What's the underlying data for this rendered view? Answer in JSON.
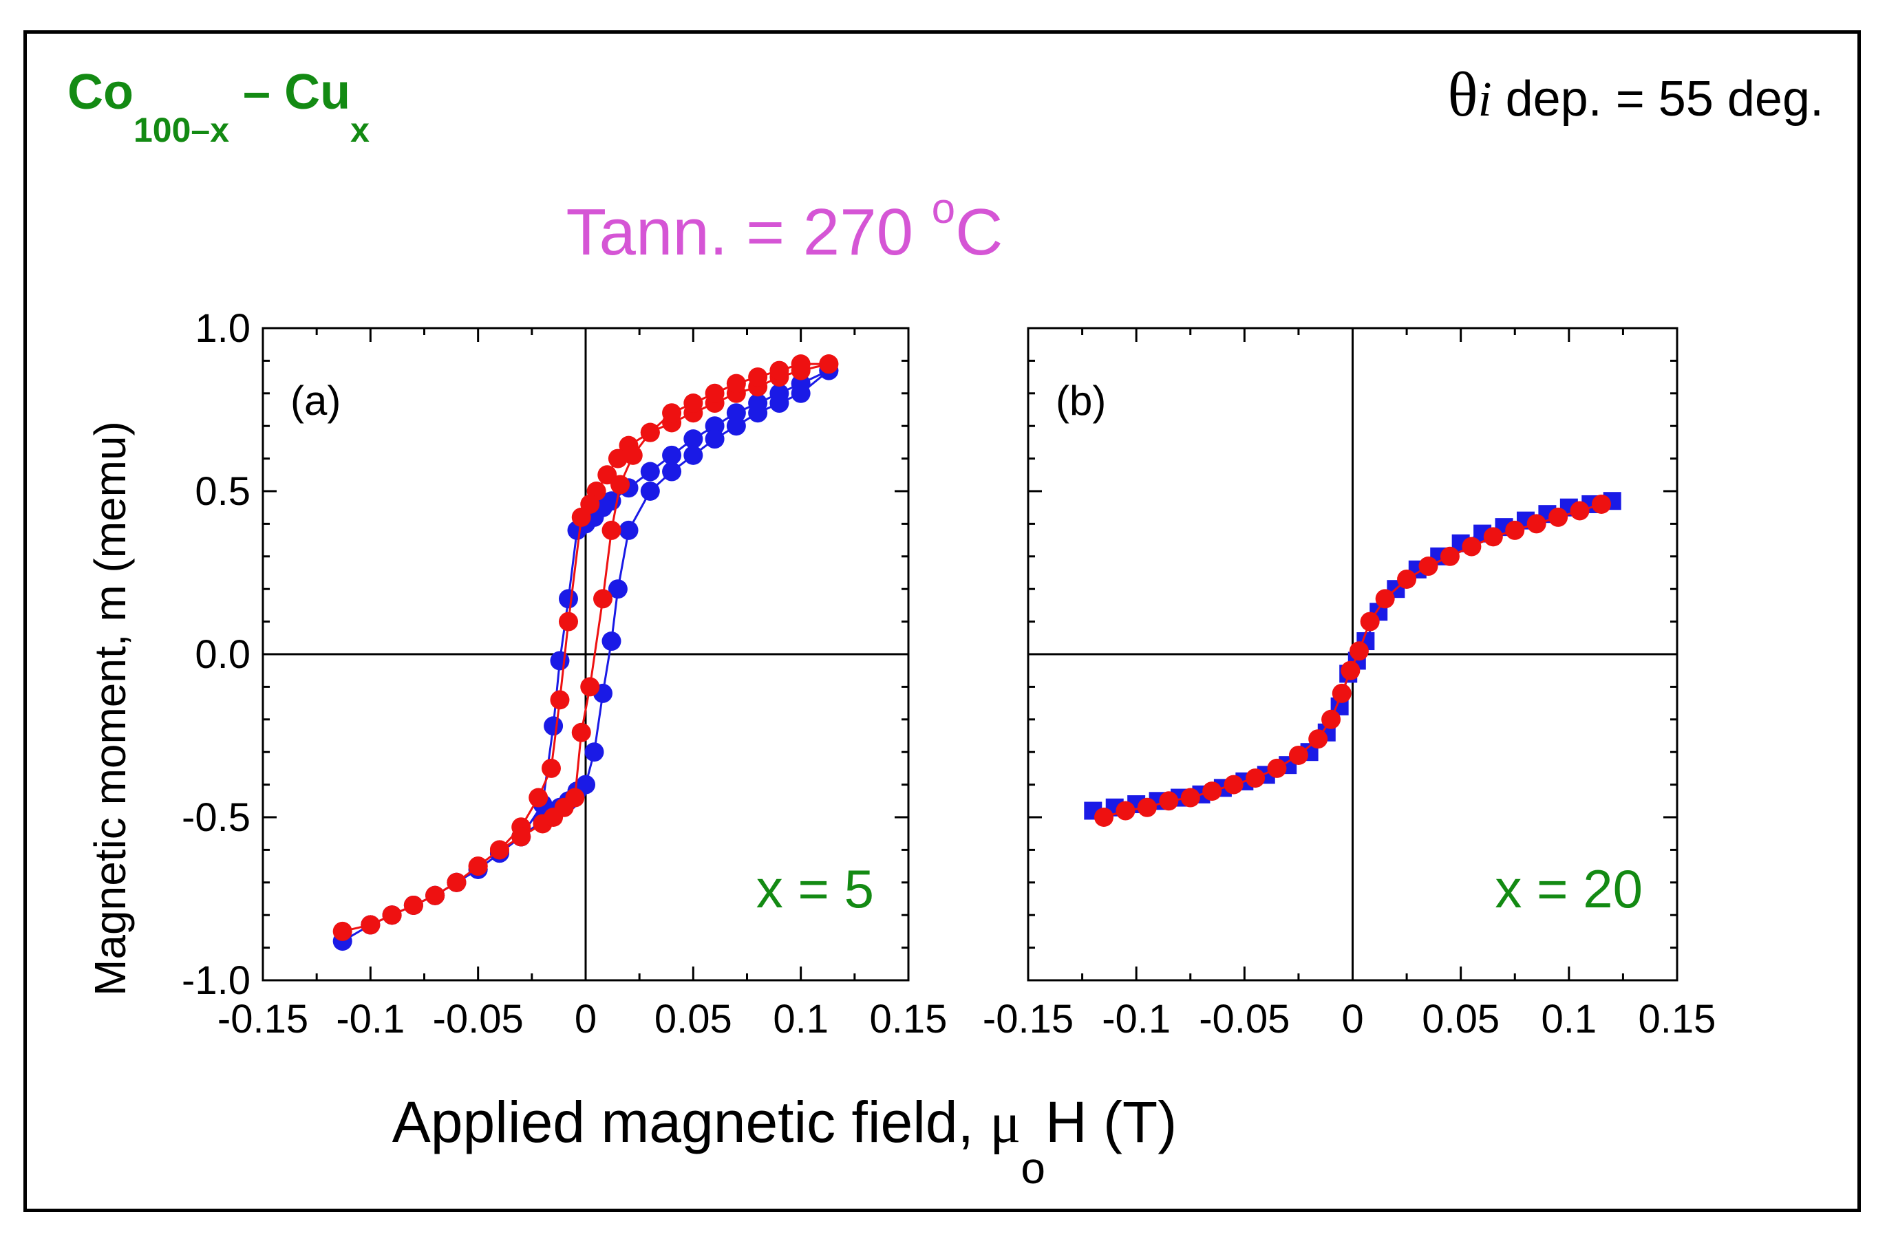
{
  "header": {
    "composition": {
      "co": "Co",
      "co_sub": "100–x",
      "dash": " – ",
      "cu": "Cu",
      "cu_sub": "x"
    },
    "angle": {
      "symbol": "θ",
      "sub": "i",
      "text": " dep. = 55 deg."
    },
    "anneal": {
      "text": "Tann. = 270 ",
      "sup": "o",
      "unit": "C"
    }
  },
  "colors": {
    "green": "#138a13",
    "magenta": "#d555d5",
    "blue": "#1a1ae6",
    "red": "#ee1111"
  },
  "chart_data": [
    {
      "type": "scatter",
      "panel_label": "(a)",
      "annotation": "x = 5",
      "xlim": [
        -0.15,
        0.15
      ],
      "ylim": [
        -1.0,
        1.0
      ],
      "xticks": [
        "-0.15",
        "-0.1",
        "-0.05",
        "0",
        "0.05",
        "0.1",
        "0.15"
      ],
      "yticks": [
        "-1.0",
        "-0.5",
        "0.0",
        "0.5",
        "1.0"
      ],
      "ylabel": "Magnetic moment, m (memu)",
      "marker": "circle",
      "series": [
        {
          "name": "blue",
          "color": "#1a1ae6",
          "x": [
            0.113,
            0.1,
            0.09,
            0.08,
            0.07,
            0.06,
            0.05,
            0.04,
            0.03,
            0.02,
            0.012,
            0.008,
            0.004,
            0.0,
            -0.004,
            -0.008,
            -0.012,
            -0.015,
            -0.02,
            -0.03,
            -0.04,
            -0.05,
            -0.06,
            -0.07,
            -0.08,
            -0.09,
            -0.1,
            -0.113,
            -0.1,
            -0.09,
            -0.08,
            -0.07,
            -0.06,
            -0.05,
            -0.04,
            -0.03,
            -0.02,
            -0.012,
            -0.008,
            -0.004,
            0.0,
            0.004,
            0.008,
            0.012,
            0.015,
            0.02,
            0.03,
            0.04,
            0.05,
            0.06,
            0.07,
            0.08,
            0.09,
            0.1,
            0.113
          ],
          "y": [
            0.87,
            0.83,
            0.8,
            0.77,
            0.74,
            0.7,
            0.66,
            0.61,
            0.56,
            0.51,
            0.47,
            0.45,
            0.42,
            0.4,
            0.38,
            0.17,
            -0.02,
            -0.22,
            -0.46,
            -0.56,
            -0.61,
            -0.66,
            -0.7,
            -0.74,
            -0.77,
            -0.8,
            -0.83,
            -0.88,
            -0.83,
            -0.8,
            -0.77,
            -0.74,
            -0.7,
            -0.66,
            -0.61,
            -0.56,
            -0.51,
            -0.47,
            -0.45,
            -0.42,
            -0.4,
            -0.3,
            -0.12,
            0.04,
            0.2,
            0.38,
            0.5,
            0.56,
            0.61,
            0.66,
            0.7,
            0.74,
            0.77,
            0.8,
            0.87
          ]
        },
        {
          "name": "red",
          "color": "#ee1111",
          "x": [
            0.113,
            0.1,
            0.09,
            0.08,
            0.07,
            0.06,
            0.05,
            0.04,
            0.03,
            0.02,
            0.015,
            0.01,
            0.005,
            0.002,
            -0.002,
            -0.008,
            -0.012,
            -0.016,
            -0.022,
            -0.03,
            -0.04,
            -0.05,
            -0.06,
            -0.07,
            -0.08,
            -0.09,
            -0.1,
            -0.113,
            -0.1,
            -0.09,
            -0.08,
            -0.07,
            -0.06,
            -0.05,
            -0.04,
            -0.03,
            -0.02,
            -0.015,
            -0.01,
            -0.005,
            -0.002,
            0.002,
            0.008,
            0.012,
            0.016,
            0.022,
            0.03,
            0.04,
            0.05,
            0.06,
            0.07,
            0.08,
            0.09,
            0.1,
            0.113
          ],
          "y": [
            0.89,
            0.87,
            0.85,
            0.82,
            0.8,
            0.77,
            0.74,
            0.71,
            0.68,
            0.64,
            0.6,
            0.55,
            0.5,
            0.46,
            0.42,
            0.1,
            -0.14,
            -0.35,
            -0.44,
            -0.53,
            -0.6,
            -0.65,
            -0.7,
            -0.74,
            -0.77,
            -0.8,
            -0.83,
            -0.85,
            -0.83,
            -0.8,
            -0.77,
            -0.74,
            -0.7,
            -0.65,
            -0.6,
            -0.56,
            -0.52,
            -0.5,
            -0.47,
            -0.44,
            -0.24,
            -0.1,
            0.17,
            0.38,
            0.52,
            0.61,
            0.68,
            0.74,
            0.77,
            0.8,
            0.83,
            0.85,
            0.87,
            0.89,
            0.89
          ]
        }
      ]
    },
    {
      "type": "scatter",
      "panel_label": "(b)",
      "annotation": "x = 20",
      "xlim": [
        -0.15,
        0.15
      ],
      "ylim": [
        -1.0,
        1.0
      ],
      "xticks": [
        "-0.15",
        "-0.1",
        "-0.05",
        "0",
        "0.05",
        "0.1",
        "0.15"
      ],
      "yticks": [
        "-1.0",
        "-0.5",
        "0.0",
        "0.5",
        "1.0"
      ],
      "marker_blue": "square",
      "marker_red": "circle",
      "series": [
        {
          "name": "blue",
          "color": "#1a1ae6",
          "x": [
            0.12,
            0.11,
            0.1,
            0.09,
            0.08,
            0.07,
            0.06,
            0.05,
            0.04,
            0.03,
            0.02,
            0.012,
            0.006,
            0.002,
            -0.002,
            -0.006,
            -0.012,
            -0.02,
            -0.03,
            -0.04,
            -0.05,
            -0.06,
            -0.07,
            -0.08,
            -0.09,
            -0.1,
            -0.11,
            -0.12
          ],
          "y": [
            0.47,
            0.46,
            0.45,
            0.43,
            0.41,
            0.39,
            0.37,
            0.34,
            0.3,
            0.26,
            0.2,
            0.13,
            0.04,
            -0.02,
            -0.06,
            -0.16,
            -0.24,
            -0.3,
            -0.34,
            -0.37,
            -0.39,
            -0.41,
            -0.43,
            -0.44,
            -0.45,
            -0.46,
            -0.47,
            -0.48
          ]
        },
        {
          "name": "red",
          "color": "#ee1111",
          "x": [
            0.115,
            0.105,
            0.095,
            0.085,
            0.075,
            0.065,
            0.055,
            0.045,
            0.035,
            0.025,
            0.015,
            0.008,
            0.003,
            -0.001,
            -0.005,
            -0.01,
            -0.016,
            -0.025,
            -0.035,
            -0.045,
            -0.055,
            -0.065,
            -0.075,
            -0.085,
            -0.095,
            -0.105,
            -0.115
          ],
          "y": [
            0.46,
            0.44,
            0.42,
            0.4,
            0.38,
            0.36,
            0.33,
            0.3,
            0.27,
            0.23,
            0.17,
            0.1,
            0.01,
            -0.05,
            -0.12,
            -0.2,
            -0.26,
            -0.31,
            -0.35,
            -0.38,
            -0.4,
            -0.42,
            -0.44,
            -0.45,
            -0.47,
            -0.48,
            -0.5
          ]
        }
      ]
    }
  ],
  "xlabel": {
    "main": "Applied magnetic field, ",
    "mu": "μ",
    "sub": "o",
    "rest": "H (T)"
  }
}
